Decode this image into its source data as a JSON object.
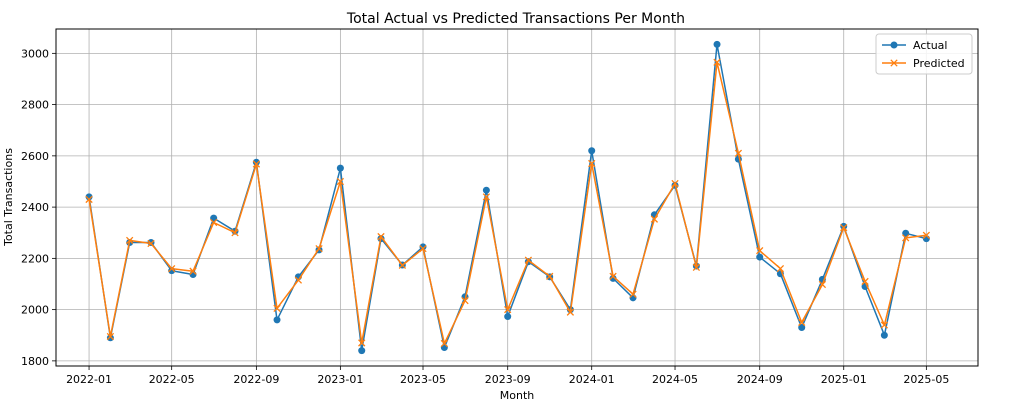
{
  "chart_data": {
    "type": "line",
    "title": "Total Actual vs Predicted Transactions Per Month",
    "xlabel": "Month",
    "ylabel": "Total Transactions",
    "grid": true,
    "legend_position": "top-right",
    "xlim": [
      "2021-11-14",
      "2025-07-15"
    ],
    "ylim": [
      1780,
      3095
    ],
    "x_ticks": [
      "2022-01",
      "2022-05",
      "2022-09",
      "2023-01",
      "2023-05",
      "2023-09",
      "2024-01",
      "2024-05",
      "2024-09",
      "2025-01",
      "2025-05"
    ],
    "y_ticks": [
      1800,
      2000,
      2200,
      2400,
      2600,
      2800,
      3000
    ],
    "x": [
      "2022-01",
      "2022-02",
      "2022-03",
      "2022-04",
      "2022-05",
      "2022-06",
      "2022-07",
      "2022-08",
      "2022-09",
      "2022-10",
      "2022-11",
      "2022-12",
      "2023-01",
      "2023-02",
      "2023-03",
      "2023-04",
      "2023-05",
      "2023-06",
      "2023-07",
      "2023-08",
      "2023-09",
      "2023-10",
      "2023-11",
      "2023-12",
      "2024-01",
      "2024-02",
      "2024-03",
      "2024-04",
      "2024-05",
      "2024-06",
      "2024-07",
      "2024-08",
      "2024-09",
      "2024-10",
      "2024-11",
      "2024-12",
      "2025-01",
      "2025-02",
      "2025-03",
      "2025-04",
      "2025-05"
    ],
    "series": [
      {
        "name": "Actual",
        "color": "#1f77b4",
        "marker": "circle",
        "values": [
          2440,
          1890,
          2262,
          2262,
          2152,
          2137,
          2357,
          2306,
          2575,
          1960,
          2128,
          2233,
          2552,
          1840,
          2277,
          2174,
          2245,
          1852,
          2050,
          2466,
          1973,
          2187,
          2128,
          2000,
          2620,
          2122,
          2046,
          2370,
          2485,
          2170,
          3035,
          2587,
          2205,
          2140,
          1930,
          2118,
          2325,
          2090,
          1900,
          2298,
          2277
        ]
      },
      {
        "name": "Predicted",
        "color": "#ff7f0e",
        "marker": "x",
        "values": [
          2430,
          1895,
          2270,
          2258,
          2160,
          2150,
          2340,
          2300,
          2568,
          2005,
          2115,
          2238,
          2500,
          1870,
          2285,
          2173,
          2238,
          1868,
          2035,
          2440,
          2000,
          2193,
          2130,
          1990,
          2570,
          2130,
          2060,
          2353,
          2492,
          2165,
          2965,
          2610,
          2230,
          2160,
          1950,
          2098,
          2320,
          2110,
          1940,
          2280,
          2290
        ]
      }
    ]
  }
}
